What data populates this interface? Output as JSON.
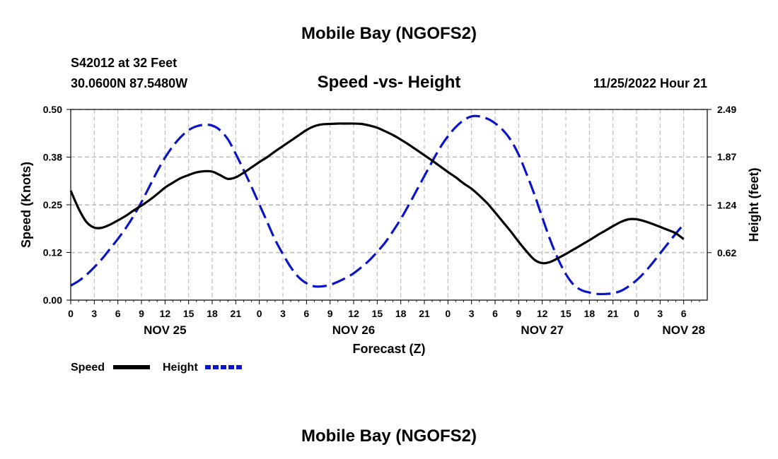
{
  "main_title": "Mobile Bay (NGOFS2)",
  "station": {
    "id_line": "S42012 at 32 Feet",
    "coords": "30.0600N  87.5480W"
  },
  "chart_title": "Speed -vs- Height",
  "timestamp": "11/25/2022 Hour 21",
  "footer_title": "Mobile Bay (NGOFS2)",
  "legend": {
    "speed_label": "Speed",
    "height_label": "Height"
  },
  "colors": {
    "speed": "#000000",
    "height": "#0a14c8",
    "grid": "#bdbdbd"
  },
  "chart_data": {
    "type": "line",
    "title": "Speed -vs- Height",
    "xlabel": "Forecast (Z)",
    "ylabel_left": "Speed (Knots)",
    "ylabel_right": "Height (feet)",
    "x_range_hours": [
      0,
      81
    ],
    "ylim_left": [
      0,
      0.5
    ],
    "ylim_right": [
      0,
      2.49
    ],
    "left_ticks": [
      {
        "value": 0.0,
        "label": "0.00"
      },
      {
        "value": 0.125,
        "label": "0.12"
      },
      {
        "value": 0.25,
        "label": "0.25"
      },
      {
        "value": 0.375,
        "label": "0.38"
      },
      {
        "value": 0.5,
        "label": "0.50"
      }
    ],
    "right_ticks": [
      {
        "value": 0.62,
        "label": "0.62"
      },
      {
        "value": 1.24,
        "label": "1.24"
      },
      {
        "value": 1.87,
        "label": "1.87"
      },
      {
        "value": 2.49,
        "label": "2.49"
      }
    ],
    "x_ticks": [
      {
        "h": 0,
        "label": "0"
      },
      {
        "h": 3,
        "label": "3"
      },
      {
        "h": 6,
        "label": "6"
      },
      {
        "h": 9,
        "label": "9"
      },
      {
        "h": 12,
        "label": "12"
      },
      {
        "h": 15,
        "label": "15"
      },
      {
        "h": 18,
        "label": "18"
      },
      {
        "h": 21,
        "label": "21"
      },
      {
        "h": 24,
        "label": "0"
      },
      {
        "h": 27,
        "label": "3"
      },
      {
        "h": 30,
        "label": "6"
      },
      {
        "h": 33,
        "label": "9"
      },
      {
        "h": 36,
        "label": "12"
      },
      {
        "h": 39,
        "label": "15"
      },
      {
        "h": 42,
        "label": "18"
      },
      {
        "h": 45,
        "label": "21"
      },
      {
        "h": 48,
        "label": "0"
      },
      {
        "h": 51,
        "label": "3"
      },
      {
        "h": 54,
        "label": "6"
      },
      {
        "h": 57,
        "label": "9"
      },
      {
        "h": 60,
        "label": "12"
      },
      {
        "h": 63,
        "label": "15"
      },
      {
        "h": 66,
        "label": "18"
      },
      {
        "h": 69,
        "label": "21"
      },
      {
        "h": 72,
        "label": "0"
      },
      {
        "h": 75,
        "label": "3"
      },
      {
        "h": 78,
        "label": "6"
      }
    ],
    "day_labels": [
      {
        "h": 12,
        "label": "NOV 25"
      },
      {
        "h": 36,
        "label": "NOV 26"
      },
      {
        "h": 60,
        "label": "NOV 27"
      },
      {
        "h": 78,
        "label": "NOV 28"
      }
    ],
    "series": [
      {
        "name": "Speed",
        "axis": "left",
        "style": "solid",
        "x": [
          0,
          1,
          2,
          3,
          4,
          5,
          6,
          7,
          8,
          9,
          10,
          11,
          12,
          13,
          14,
          15,
          16,
          17,
          18,
          19,
          20,
          21,
          22,
          23,
          24,
          25,
          26,
          27,
          28,
          29,
          30,
          31,
          32,
          33,
          34,
          35,
          36,
          37,
          38,
          39,
          40,
          41,
          42,
          43,
          44,
          45,
          46,
          47,
          48,
          49,
          50,
          51,
          52,
          53,
          54,
          55,
          56,
          57,
          58,
          59,
          60,
          61,
          62,
          63,
          64,
          65,
          66,
          67,
          68,
          69,
          70,
          71,
          72,
          73,
          74,
          75,
          76,
          77,
          78
        ],
        "values": [
          0.287,
          0.24,
          0.205,
          0.19,
          0.19,
          0.198,
          0.209,
          0.221,
          0.235,
          0.248,
          0.262,
          0.278,
          0.295,
          0.308,
          0.32,
          0.328,
          0.335,
          0.338,
          0.337,
          0.328,
          0.318,
          0.322,
          0.334,
          0.348,
          0.362,
          0.375,
          0.39,
          0.404,
          0.418,
          0.432,
          0.446,
          0.456,
          0.461,
          0.462,
          0.463,
          0.463,
          0.463,
          0.462,
          0.458,
          0.452,
          0.443,
          0.433,
          0.421,
          0.408,
          0.394,
          0.38,
          0.366,
          0.351,
          0.336,
          0.322,
          0.306,
          0.292,
          0.274,
          0.254,
          0.23,
          0.205,
          0.18,
          0.153,
          0.128,
          0.106,
          0.097,
          0.1,
          0.11,
          0.121,
          0.133,
          0.145,
          0.157,
          0.17,
          0.182,
          0.194,
          0.205,
          0.212,
          0.212,
          0.207,
          0.2,
          0.192,
          0.184,
          0.175,
          0.16
        ]
      },
      {
        "name": "Height",
        "axis": "right",
        "style": "dashed",
        "x": [
          0,
          1,
          2,
          3,
          4,
          5,
          6,
          7,
          8,
          9,
          10,
          11,
          12,
          13,
          14,
          15,
          16,
          17,
          18,
          19,
          20,
          21,
          22,
          23,
          24,
          25,
          26,
          27,
          28,
          29,
          30,
          31,
          32,
          33,
          34,
          35,
          36,
          37,
          38,
          39,
          40,
          41,
          42,
          43,
          44,
          45,
          46,
          47,
          48,
          49,
          50,
          51,
          52,
          53,
          54,
          55,
          56,
          57,
          58,
          59,
          60,
          61,
          62,
          63,
          64,
          65,
          66,
          67,
          68,
          69,
          70,
          71,
          72,
          73,
          74,
          75,
          76,
          77,
          78
        ],
        "values": [
          0.19,
          0.25,
          0.33,
          0.43,
          0.54,
          0.67,
          0.8,
          0.94,
          1.1,
          1.28,
          1.48,
          1.68,
          1.86,
          2.01,
          2.13,
          2.22,
          2.27,
          2.29,
          2.28,
          2.22,
          2.1,
          1.91,
          1.7,
          1.48,
          1.25,
          1.02,
          0.79,
          0.6,
          0.43,
          0.3,
          0.22,
          0.18,
          0.18,
          0.2,
          0.24,
          0.29,
          0.35,
          0.43,
          0.52,
          0.63,
          0.75,
          0.9,
          1.06,
          1.24,
          1.43,
          1.62,
          1.81,
          1.99,
          2.14,
          2.26,
          2.35,
          2.4,
          2.4,
          2.37,
          2.31,
          2.22,
          2.09,
          1.9,
          1.65,
          1.38,
          1.08,
          0.79,
          0.54,
          0.34,
          0.2,
          0.13,
          0.1,
          0.08,
          0.08,
          0.09,
          0.12,
          0.18,
          0.26,
          0.36,
          0.48,
          0.61,
          0.74,
          0.87,
          0.99
        ]
      }
    ]
  }
}
